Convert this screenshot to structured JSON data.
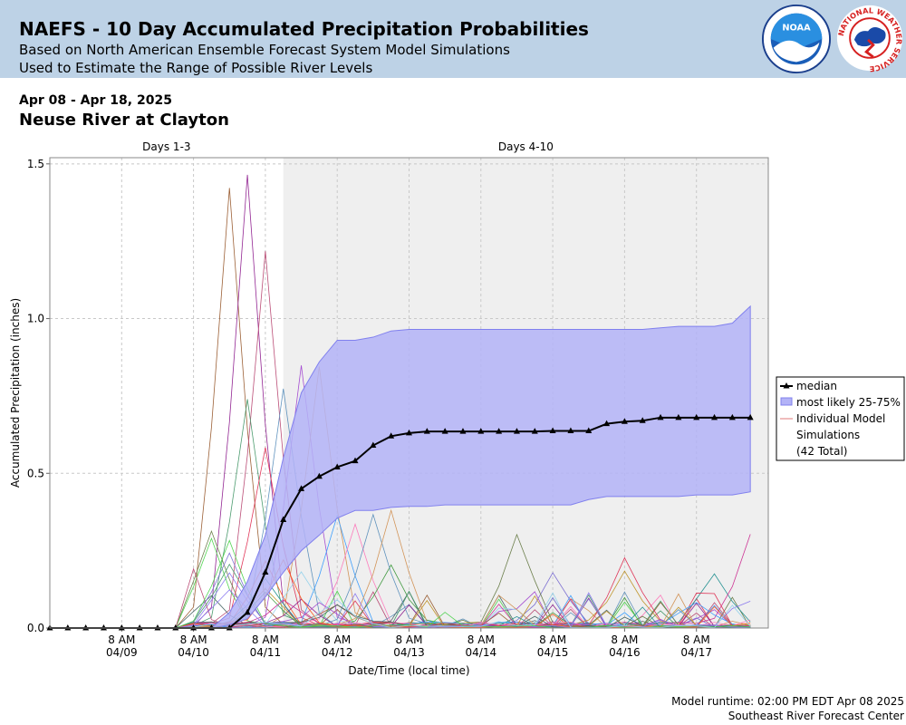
{
  "header": {
    "title": "NAEFS - 10 Day Accumulated Precipitation Probabilities",
    "subtitle_line1": "Based on North American Ensemble Forecast System Model Simulations",
    "subtitle_line2": "Used to Estimate the Range of Possible River Levels",
    "bg_color": "#bdd2e6"
  },
  "logos": {
    "noaa": {
      "text": "NOAA",
      "icon": "noaa-logo"
    },
    "nws": {
      "text": "NATIONAL WEATHER SERVICE",
      "icon": "nws-logo"
    }
  },
  "date_range": "Apr 08 - Apr 18, 2025",
  "location": "Neuse River at Clayton",
  "footer": {
    "runtime": "Model runtime: 02:00 PM EDT Apr 08 2025",
    "center": "Southeast River Forecast Center"
  },
  "chart_data": {
    "type": "line",
    "xlabel": "Date/Time (local time)",
    "ylabel": "Accumulated Precipitation (inches)",
    "ylim": [
      0,
      1.52
    ],
    "yticks": [
      0.0,
      0.5,
      1.0,
      1.5
    ],
    "ytick_labels": [
      "0.0",
      "0.5",
      "1.0",
      "1.5"
    ],
    "x_unit": "hours since Apr 08 8 PM EDT",
    "xlim": [
      0,
      120
    ],
    "xticks": [
      {
        "h": 12,
        "time": "8 AM",
        "date": "04/09"
      },
      {
        "h": 24,
        "time": "8 AM",
        "date": "04/10"
      },
      {
        "h": 36,
        "time": "8 AM",
        "date": "04/11"
      },
      {
        "h": 48,
        "time": "8 AM",
        "date": "04/12"
      },
      {
        "h": 60,
        "time": "8 AM",
        "date": "04/13"
      },
      {
        "h": 72,
        "time": "8 AM",
        "date": "04/14"
      },
      {
        "h": 84,
        "time": "8 AM",
        "date": "04/15"
      },
      {
        "h": 96,
        "time": "8 AM",
        "date": "04/16"
      },
      {
        "h": 108,
        "time": "8 AM",
        "date": "04/17"
      }
    ],
    "period_labels": [
      {
        "label": "Days 1-3",
        "from": 0,
        "to": 39
      },
      {
        "label": "Days 4-10",
        "from": 39,
        "to": 120
      }
    ],
    "shaded_from": 39,
    "colors": {
      "median": "#000000",
      "band_fill": "#b3b3f7",
      "band_edge": "#8080ee",
      "shaded_bg": "#efefef",
      "grid": "#c8c8c8"
    },
    "legend": {
      "position": "right",
      "entries": [
        "median",
        "most likely 25-75%",
        "Individual Model",
        "Simulations",
        "(42 Total)"
      ]
    },
    "series": [
      {
        "name": "median",
        "x": [
          0,
          3,
          6,
          9,
          12,
          15,
          18,
          21,
          24,
          27,
          30,
          33,
          36,
          39,
          42,
          45,
          48,
          51,
          54,
          57,
          60,
          63,
          66,
          69,
          72,
          75,
          78,
          81,
          84,
          87,
          90,
          93,
          96,
          99,
          102,
          105,
          108,
          111,
          114,
          117
        ],
        "y": [
          0,
          0,
          0,
          0,
          0,
          0,
          0,
          0,
          0,
          0,
          0,
          0.05,
          0.18,
          0.35,
          0.45,
          0.49,
          0.52,
          0.54,
          0.59,
          0.62,
          0.63,
          0.635,
          0.635,
          0.635,
          0.635,
          0.635,
          0.635,
          0.635,
          0.637,
          0.637,
          0.637,
          0.66,
          0.667,
          0.67,
          0.68,
          0.68,
          0.68,
          0.68,
          0.68,
          0.68
        ]
      },
      {
        "name": "most likely 25-75%",
        "x": [
          27,
          30,
          33,
          36,
          39,
          42,
          45,
          48,
          51,
          54,
          57,
          60,
          63,
          66,
          69,
          72,
          75,
          78,
          81,
          84,
          87,
          90,
          93,
          96,
          99,
          102,
          105,
          108,
          111,
          114,
          117
        ],
        "upper": [
          0,
          0.05,
          0.15,
          0.3,
          0.55,
          0.76,
          0.86,
          0.93,
          0.93,
          0.94,
          0.96,
          0.965,
          0.965,
          0.965,
          0.965,
          0.965,
          0.965,
          0.965,
          0.965,
          0.965,
          0.965,
          0.965,
          0.965,
          0.965,
          0.965,
          0.97,
          0.975,
          0.975,
          0.975,
          0.985,
          1.04
        ],
        "lower": [
          0,
          0.01,
          0.03,
          0.1,
          0.18,
          0.25,
          0.3,
          0.355,
          0.38,
          0.38,
          0.39,
          0.393,
          0.393,
          0.398,
          0.398,
          0.398,
          0.398,
          0.398,
          0.398,
          0.398,
          0.398,
          0.415,
          0.425,
          0.425,
          0.425,
          0.425,
          0.425,
          0.43,
          0.43,
          0.43,
          0.44
        ]
      }
    ],
    "individual_simulations": {
      "count": 42,
      "x": [
        0,
        3,
        6,
        9,
        12,
        15,
        18,
        21,
        24,
        27,
        30,
        33,
        36,
        39,
        42,
        45,
        48,
        51,
        54,
        57,
        60,
        63,
        66,
        69,
        72,
        75,
        78,
        81,
        84,
        87,
        90,
        93,
        96,
        99,
        102,
        105,
        108,
        111,
        114,
        117
      ],
      "colors": [
        "#8b4513",
        "#800080",
        "#b03060",
        "#2e8b57",
        "#4682b4",
        "#9932cc",
        "#cd853f",
        "#556b2f",
        "#dc143c",
        "#1e90ff",
        "#ff69b4",
        "#228b22",
        "#6a5acd",
        "#b8860b",
        "#008080",
        "#c71585",
        "#2f4f4f",
        "#ff4500",
        "#7b68ee",
        "#32cd32",
        "#87ceeb"
      ],
      "peaks": [
        {
          "h": 30,
          "v": 1.42
        },
        {
          "h": 33,
          "v": 1.45
        },
        {
          "h": 36,
          "v": 1.2
        },
        {
          "h": 33,
          "v": 0.73
        },
        {
          "h": 39,
          "v": 0.76
        },
        {
          "h": 42,
          "v": 0.84
        },
        {
          "h": 45,
          "v": 0.83
        },
        {
          "h": 27,
          "v": 0.31
        },
        {
          "h": 36,
          "v": 0.58
        },
        {
          "h": 48,
          "v": 0.35
        },
        {
          "h": 51,
          "v": 0.32
        },
        {
          "h": 57,
          "v": 0.19
        },
        {
          "h": 84,
          "v": 0.16
        },
        {
          "h": 96,
          "v": 0.17
        },
        {
          "h": 111,
          "v": 0.17
        },
        {
          "h": 117,
          "v": 0.29
        }
      ]
    }
  }
}
